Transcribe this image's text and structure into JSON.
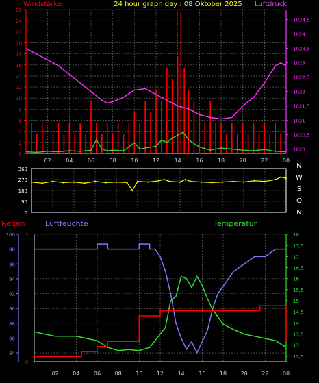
{
  "title": "24 hour graph day : 08 Oktober 2025",
  "colors": {
    "background": "#000000",
    "grid": "#7a7a7a",
    "frame": "#ffffff",
    "wind": "#ff0000",
    "gust": "#ff0000",
    "wind_avg": "#33cc33",
    "pressure": "#ff33ff",
    "direction": "#ffff00",
    "rain": "#ff0000",
    "humidity": "#7a7aff",
    "temperature": "#33dd33",
    "title": "#ffff00"
  },
  "chart_data": [
    {
      "type": "line",
      "title": "24 hour graph day : 08 Oktober 2025",
      "left_axis_label": "Windstärke",
      "right_axis_label": "Luftdruck",
      "x_ticks": [
        "02",
        "04",
        "06",
        "08",
        "10",
        "12",
        "14",
        "16",
        "18",
        "20",
        "22",
        "00"
      ],
      "x_range": [
        0,
        24
      ],
      "left_ylim": [
        0,
        26
      ],
      "left_ticks": [
        0,
        2,
        4,
        6,
        8,
        10,
        12,
        14,
        16,
        18,
        20,
        22,
        24,
        26
      ],
      "right_ylim": [
        1019.85,
        1024.85
      ],
      "right_ticks": [
        "1020",
        "1020,5",
        "1021",
        "1021,5",
        "1022",
        "1022,5",
        "1023",
        "1023,5",
        "1024",
        "1024,5"
      ],
      "series": [
        {
          "name": "Luftdruck",
          "axis": "right",
          "points": [
            [
              0,
              1023.5
            ],
            [
              1,
              1023.3
            ],
            [
              2,
              1023.1
            ],
            [
              3,
              1022.9
            ],
            [
              4,
              1022.6
            ],
            [
              5,
              1022.3
            ],
            [
              6,
              1022.0
            ],
            [
              7,
              1021.7
            ],
            [
              7.5,
              1021.6
            ],
            [
              8,
              1021.65
            ],
            [
              9,
              1021.8
            ],
            [
              10,
              1022.05
            ],
            [
              11,
              1022.1
            ],
            [
              12,
              1021.9
            ],
            [
              13,
              1021.7
            ],
            [
              14,
              1021.5
            ],
            [
              15,
              1021.4
            ],
            [
              16,
              1021.2
            ],
            [
              17,
              1021.1
            ],
            [
              18,
              1021.05
            ],
            [
              19,
              1021.1
            ],
            [
              20,
              1021.5
            ],
            [
              21,
              1021.8
            ],
            [
              22,
              1022.3
            ],
            [
              23,
              1022.9
            ],
            [
              23.5,
              1023.0
            ],
            [
              24,
              1022.9
            ]
          ]
        },
        {
          "name": "wind_avg",
          "axis": "left",
          "points": [
            [
              0,
              0.3
            ],
            [
              1,
              0.2
            ],
            [
              2,
              0.4
            ],
            [
              3,
              0.3
            ],
            [
              4,
              0.5
            ],
            [
              5,
              0.4
            ],
            [
              6,
              0.6
            ],
            [
              6.5,
              2.5
            ],
            [
              7,
              0.8
            ],
            [
              7.5,
              0.5
            ],
            [
              8,
              0.6
            ],
            [
              9,
              0.5
            ],
            [
              9.5,
              1.2
            ],
            [
              10,
              2.0
            ],
            [
              10.5,
              0.8
            ],
            [
              11,
              1.0
            ],
            [
              12,
              1.3
            ],
            [
              12.5,
              2.4
            ],
            [
              13,
              2.0
            ],
            [
              13.5,
              2.8
            ],
            [
              14,
              3.3
            ],
            [
              14.5,
              3.8
            ],
            [
              15,
              2.5
            ],
            [
              15.5,
              1.8
            ],
            [
              16,
              1.2
            ],
            [
              17,
              0.6
            ],
            [
              18,
              1.0
            ],
            [
              19,
              0.8
            ],
            [
              20,
              0.6
            ],
            [
              21,
              0.5
            ],
            [
              22,
              0.7
            ],
            [
              23,
              0.4
            ],
            [
              24,
              0.3
            ]
          ]
        }
      ],
      "gusts": [
        [
          0.5,
          5.5
        ],
        [
          1,
          3.5
        ],
        [
          1.5,
          5.5
        ],
        [
          2.5,
          3.5
        ],
        [
          3,
          5.5
        ],
        [
          3.5,
          3.5
        ],
        [
          4,
          5.5
        ],
        [
          4.5,
          3.5
        ],
        [
          5,
          5.5
        ],
        [
          5.5,
          3.5
        ],
        [
          6,
          9.5
        ],
        [
          6.5,
          5.5
        ],
        [
          7,
          3.5
        ],
        [
          7.5,
          5.5
        ],
        [
          8,
          3.5
        ],
        [
          8.5,
          5.5
        ],
        [
          9,
          3.5
        ],
        [
          9.5,
          5.5
        ],
        [
          10,
          7.5
        ],
        [
          10.5,
          5.5
        ],
        [
          11,
          9.5
        ],
        [
          11.5,
          7.5
        ],
        [
          12,
          11.5
        ],
        [
          12.5,
          9.5
        ],
        [
          13,
          15.5
        ],
        [
          13.5,
          13.5
        ],
        [
          14,
          17.5
        ],
        [
          14.3,
          25.5
        ],
        [
          14.6,
          15.5
        ],
        [
          15,
          11.5
        ],
        [
          15.5,
          9.5
        ],
        [
          16,
          7.5
        ],
        [
          16.5,
          5.5
        ],
        [
          17,
          9.5
        ],
        [
          17.5,
          5.5
        ],
        [
          18,
          5.5
        ],
        [
          18.5,
          3.5
        ],
        [
          19,
          5.5
        ],
        [
          19.5,
          3.5
        ],
        [
          20,
          5.5
        ],
        [
          20.5,
          3.5
        ],
        [
          21,
          5.5
        ],
        [
          21.5,
          3.5
        ],
        [
          22,
          5.5
        ],
        [
          22.5,
          3.5
        ],
        [
          23,
          5.5
        ],
        [
          23.5,
          3.5
        ]
      ]
    },
    {
      "type": "scatter",
      "title": "",
      "left_ylim": [
        0,
        360
      ],
      "left_ticks": [
        "0",
        "90",
        "180",
        "270",
        "360"
      ],
      "right_labels": [
        "N",
        "W",
        "S",
        "O",
        "N"
      ],
      "x_range": [
        0,
        24
      ],
      "points": [
        [
          0,
          250
        ],
        [
          1,
          240
        ],
        [
          2,
          255
        ],
        [
          3,
          245
        ],
        [
          4,
          250
        ],
        [
          5,
          240
        ],
        [
          6,
          255
        ],
        [
          7,
          245
        ],
        [
          8,
          250
        ],
        [
          9,
          245
        ],
        [
          9.5,
          180
        ],
        [
          10,
          255
        ],
        [
          11,
          250
        ],
        [
          12,
          260
        ],
        [
          12.5,
          270
        ],
        [
          13,
          255
        ],
        [
          14,
          250
        ],
        [
          14.5,
          270
        ],
        [
          15,
          255
        ],
        [
          16,
          250
        ],
        [
          17,
          245
        ],
        [
          18,
          250
        ],
        [
          19,
          255
        ],
        [
          20,
          250
        ],
        [
          21,
          260
        ],
        [
          22,
          255
        ],
        [
          23,
          270
        ],
        [
          23.5,
          290
        ],
        [
          24,
          280
        ]
      ]
    },
    {
      "type": "line",
      "title": "",
      "rain_label": "Regen",
      "humidity_label": "Luftfeuchte",
      "temperature_label": "Temperatur",
      "x_ticks": [
        "02",
        "04",
        "06",
        "08",
        "10",
        "12",
        "14",
        "16",
        "18",
        "20",
        "22",
        "00"
      ],
      "x_range": [
        0,
        24
      ],
      "rain_ylim": [
        0,
        5
      ],
      "rain_ticks": [
        "0",
        "5"
      ],
      "humidity_ylim": [
        82.8,
        100
      ],
      "humidity_ticks": [
        "84",
        "86",
        "88",
        "90",
        "92",
        "94",
        "96",
        "98",
        "100"
      ],
      "temperature_ylim": [
        12.25,
        18
      ],
      "temperature_ticks": [
        "12,5",
        "13",
        "13,5",
        "14",
        "14,5",
        "15",
        "15,5",
        "16",
        "16,5",
        "17",
        "17,5",
        "18"
      ],
      "series": [
        {
          "name": "Luftfeuchte",
          "points": [
            [
              0,
              98
            ],
            [
              6,
              98
            ],
            [
              6,
              98.7
            ],
            [
              7,
              98.7
            ],
            [
              7,
              98
            ],
            [
              8,
              98
            ],
            [
              10,
              98
            ],
            [
              10,
              98.7
            ],
            [
              11,
              98.7
            ],
            [
              11,
              98
            ],
            [
              11.5,
              98
            ],
            [
              12,
              97
            ],
            [
              12.5,
              95
            ],
            [
              13,
              92
            ],
            [
              13.5,
              88
            ],
            [
              14,
              86
            ],
            [
              14.5,
              84.5
            ],
            [
              15,
              85.5
            ],
            [
              15.5,
              84
            ],
            [
              16,
              85.5
            ],
            [
              16.5,
              87
            ],
            [
              17,
              90
            ],
            [
              17.5,
              92
            ],
            [
              18,
              93
            ],
            [
              19,
              95
            ],
            [
              20,
              96
            ],
            [
              21,
              97
            ],
            [
              22,
              97
            ],
            [
              23,
              98
            ],
            [
              24,
              98
            ]
          ]
        },
        {
          "name": "Temperatur",
          "points": [
            [
              0,
              13.6
            ],
            [
              1,
              13.5
            ],
            [
              2,
              13.4
            ],
            [
              3,
              13.4
            ],
            [
              4,
              13.4
            ],
            [
              5,
              13.3
            ],
            [
              6,
              13.2
            ],
            [
              7,
              12.9
            ],
            [
              8,
              12.75
            ],
            [
              9,
              12.8
            ],
            [
              10,
              12.75
            ],
            [
              11,
              12.9
            ],
            [
              12,
              13.5
            ],
            [
              12.5,
              13.8
            ],
            [
              13,
              15.0
            ],
            [
              13.5,
              15.2
            ],
            [
              14,
              16.1
            ],
            [
              14.5,
              16.0
            ],
            [
              15,
              15.6
            ],
            [
              15.5,
              16.1
            ],
            [
              16,
              15.7
            ],
            [
              16.5,
              15.1
            ],
            [
              17,
              14.6
            ],
            [
              18,
              13.95
            ],
            [
              19,
              13.7
            ],
            [
              20,
              13.5
            ],
            [
              21,
              13.4
            ],
            [
              22,
              13.3
            ],
            [
              23,
              13.2
            ],
            [
              24,
              12.9
            ]
          ]
        },
        {
          "name": "Regen",
          "points": [
            [
              0,
              0.2
            ],
            [
              4.5,
              0.2
            ],
            [
              4.5,
              0.4
            ],
            [
              6,
              0.4
            ],
            [
              6,
              0.6
            ],
            [
              7,
              0.6
            ],
            [
              7,
              0.8
            ],
            [
              10,
              0.8
            ],
            [
              10,
              1.8
            ],
            [
              12,
              1.8
            ],
            [
              12,
              2.0
            ],
            [
              21.5,
              2.0
            ],
            [
              21.5,
              2.2
            ],
            [
              24,
              2.2
            ],
            [
              24,
              0.8
            ]
          ]
        }
      ]
    }
  ]
}
